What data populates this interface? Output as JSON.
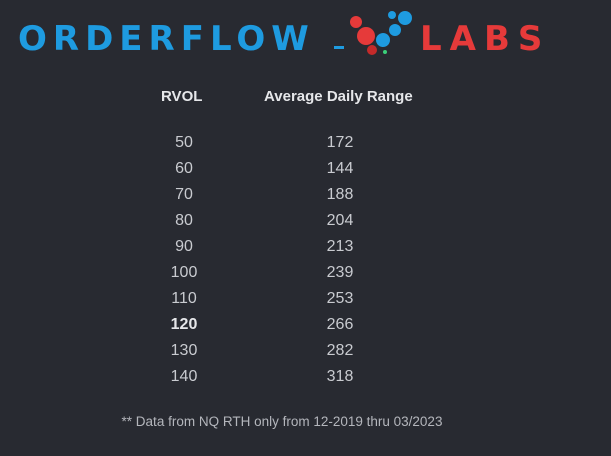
{
  "logo": {
    "left_text": "ORDERFLOW",
    "right_text": "LABS",
    "left_color": "#1e9be0",
    "right_color": "#e63a3a"
  },
  "headers": {
    "rvol": "RVOL",
    "range": "Average Daily Range"
  },
  "rows": [
    {
      "rvol": "50",
      "range": "172"
    },
    {
      "rvol": "60",
      "range": "144"
    },
    {
      "rvol": "70",
      "range": "188"
    },
    {
      "rvol": "80",
      "range": "204"
    },
    {
      "rvol": "90",
      "range": "213"
    },
    {
      "rvol": "100",
      "range": "239"
    },
    {
      "rvol": "110",
      "range": "253"
    },
    {
      "rvol": "120",
      "range": "266",
      "bold": true
    },
    {
      "rvol": "130",
      "range": "282"
    },
    {
      "rvol": "140",
      "range": "318"
    }
  ],
  "footnote": "** Data from NQ RTH only from 12-2019 thru 03/2023"
}
